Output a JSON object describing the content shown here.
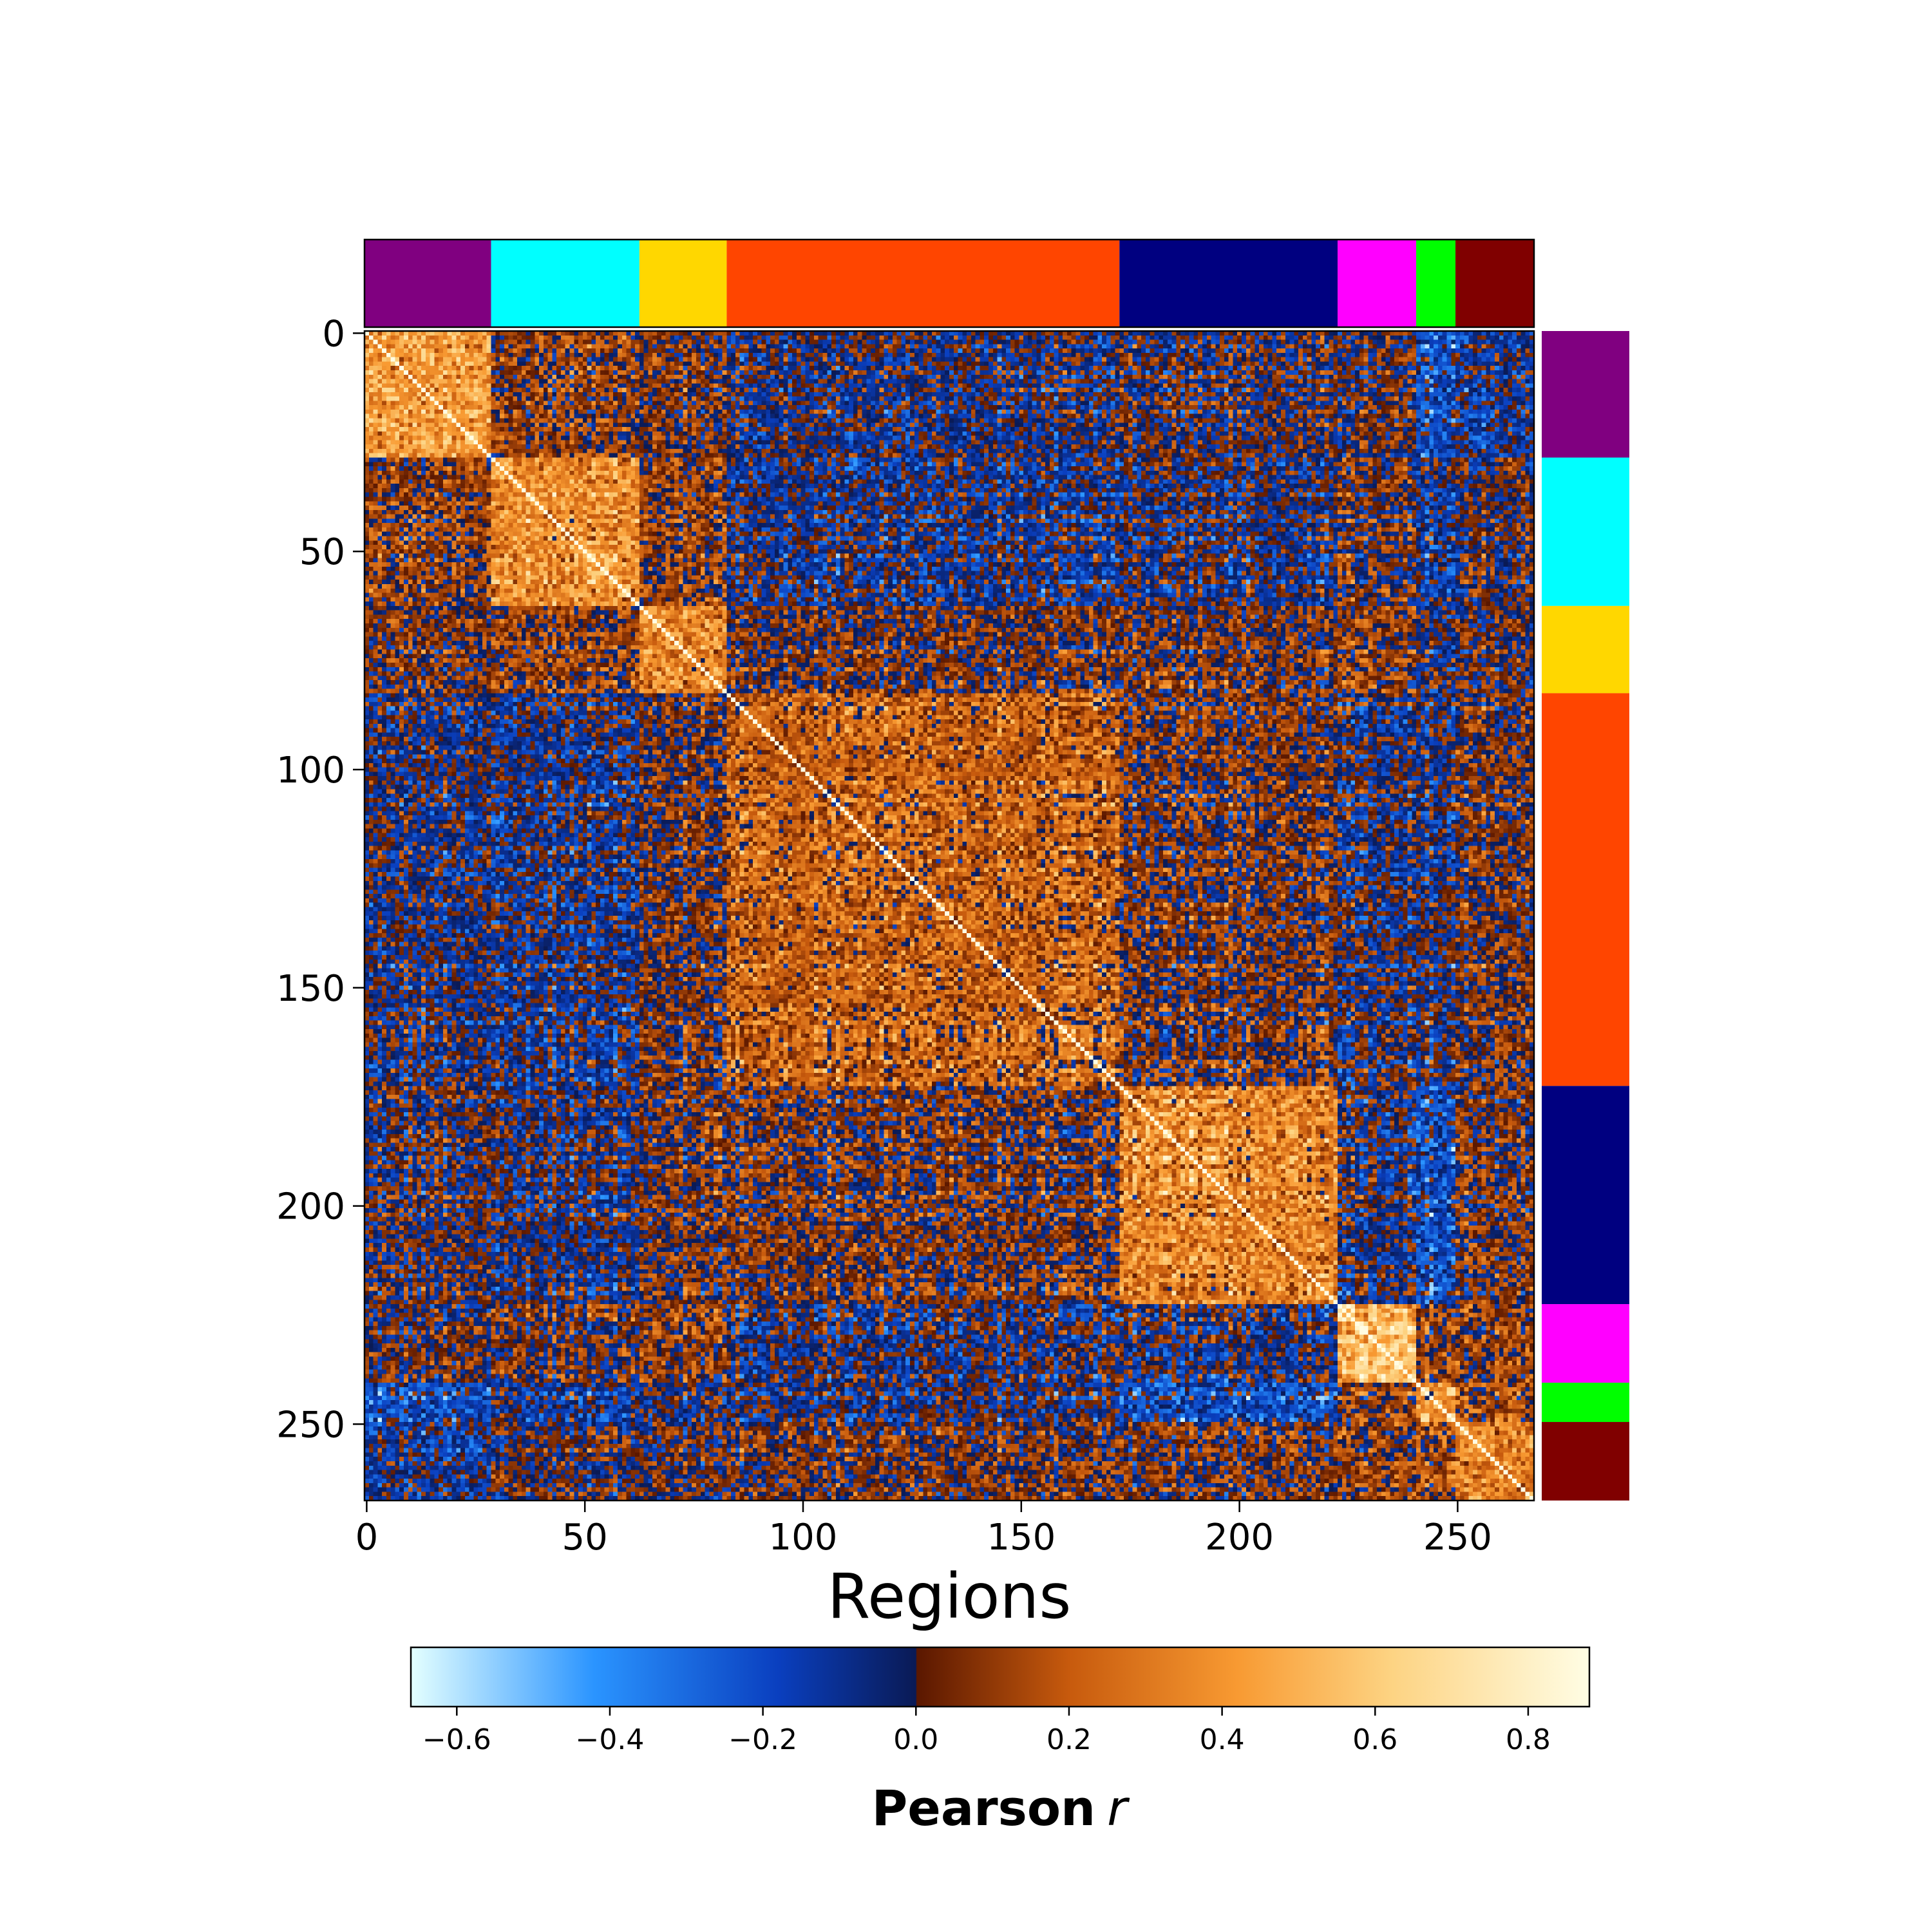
{
  "chart_data": {
    "type": "heatmap",
    "title": "",
    "xlabel": "Regions",
    "ylabel": "",
    "n_regions": 268,
    "x_ticks": [
      0,
      50,
      100,
      150,
      200,
      250
    ],
    "y_ticks": [
      0,
      50,
      100,
      150,
      200,
      250
    ],
    "networks": [
      {
        "start": 0,
        "end": 29,
        "color": "#800080"
      },
      {
        "start": 29,
        "end": 63,
        "color": "#00FFFF"
      },
      {
        "start": 63,
        "end": 83,
        "color": "#FFD700"
      },
      {
        "start": 83,
        "end": 173,
        "color": "#FF4500"
      },
      {
        "start": 173,
        "end": 223,
        "color": "#000080"
      },
      {
        "start": 223,
        "end": 241,
        "color": "#FF00FF"
      },
      {
        "start": 241,
        "end": 250,
        "color": "#00FF00"
      },
      {
        "start": 250,
        "end": 268,
        "color": "#800000"
      }
    ],
    "colorbar": {
      "label": "Pearson",
      "label_italic": "r",
      "vmin": -0.66,
      "vmax": 0.88,
      "ticks": [
        -0.6,
        -0.4,
        -0.2,
        0.0,
        0.2,
        0.4,
        0.6,
        0.8
      ],
      "tick_labels": [
        "−0.6",
        "−0.4",
        "−0.2",
        "0.0",
        "0.2",
        "0.4",
        "0.6",
        "0.8"
      ],
      "stops": [
        {
          "v": -0.66,
          "color": "#e4ffff"
        },
        {
          "v": -0.42,
          "color": "#2a94ff"
        },
        {
          "v": -0.18,
          "color": "#0a3fbf"
        },
        {
          "v": 0.0,
          "color": "#0a1a55"
        },
        {
          "v": 0.001,
          "color": "#5a1700"
        },
        {
          "v": 0.2,
          "color": "#c75a0d"
        },
        {
          "v": 0.42,
          "color": "#f89a32"
        },
        {
          "v": 0.62,
          "color": "#fdd382"
        },
        {
          "v": 0.88,
          "color": "#fffde4"
        }
      ]
    },
    "diagonal_value": 1.0
  }
}
